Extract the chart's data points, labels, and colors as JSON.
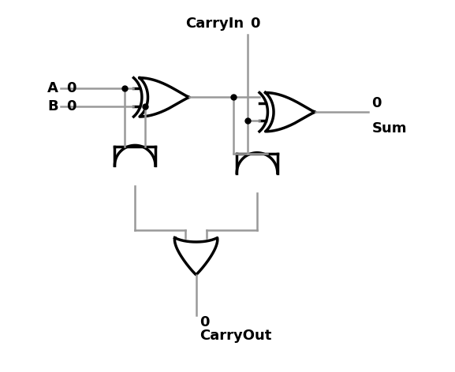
{
  "wire_color": "#999999",
  "gate_color": "#000000",
  "bg_color": "#ffffff",
  "dot_color": "#000000",
  "lw_wire": 1.8,
  "lw_gate": 2.5,
  "dot_size": 5,
  "figsize": [
    5.77,
    4.72
  ],
  "dpi": 100,
  "xlim": [
    0,
    10
  ],
  "ylim": [
    0,
    10
  ],
  "labels": {
    "A": "A",
    "B": "B",
    "CarryIn": "CarryIn",
    "Sum": "Sum",
    "CarryOut": "CarryOut"
  },
  "values": {
    "A": "0",
    "B": "0",
    "CarryIn": "0",
    "Sum": "0",
    "CarryOut": "0"
  },
  "font_size_label": 13,
  "font_size_val": 13
}
